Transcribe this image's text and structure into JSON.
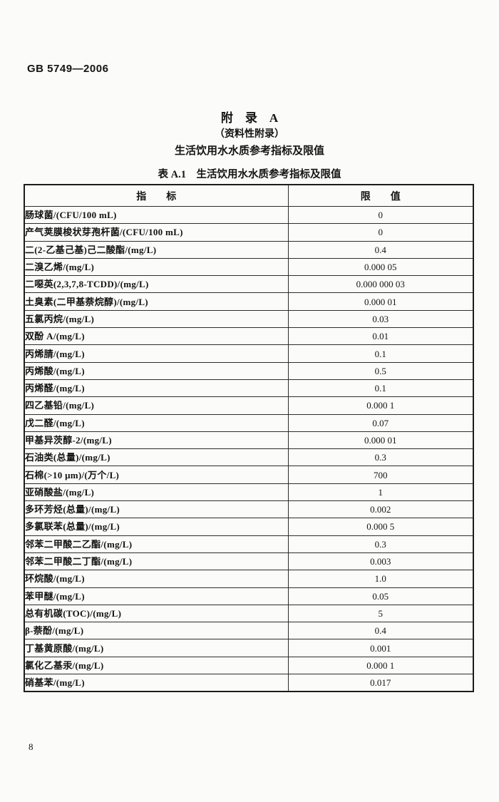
{
  "page": {
    "header": "GB 5749—2006",
    "page_number": "8"
  },
  "appendix": {
    "title": "附　录　A",
    "subtitle": "（资料性附录）",
    "heading": "生活饮用水水质参考指标及限值"
  },
  "table": {
    "caption": "表 A.1　生活饮用水水质参考指标及限值",
    "columns": [
      "指　　标",
      "限　　值"
    ],
    "rows": [
      {
        "indicator": "肠球菌/(CFU/100 mL)",
        "limit": "0"
      },
      {
        "indicator": "产气荚膜梭状芽孢杆菌/(CFU/100 mL)",
        "limit": "0"
      },
      {
        "indicator": "二(2-乙基己基)己二酸酯/(mg/L)",
        "limit": "0.4"
      },
      {
        "indicator": "二溴乙烯/(mg/L)",
        "limit": "0.000 05"
      },
      {
        "indicator": "二噁英(2,3,7,8-TCDD)/(mg/L)",
        "limit": "0.000 000 03"
      },
      {
        "indicator": "土臭素(二甲基萘烷醇)/(mg/L)",
        "limit": "0.000 01"
      },
      {
        "indicator": "五氯丙烷/(mg/L)",
        "limit": "0.03"
      },
      {
        "indicator": "双酚 A/(mg/L)",
        "limit": "0.01"
      },
      {
        "indicator": "丙烯腈/(mg/L)",
        "limit": "0.1"
      },
      {
        "indicator": "丙烯酸/(mg/L)",
        "limit": "0.5"
      },
      {
        "indicator": "丙烯醛/(mg/L)",
        "limit": "0.1"
      },
      {
        "indicator": "四乙基铅/(mg/L)",
        "limit": "0.000 1"
      },
      {
        "indicator": "戊二醛/(mg/L)",
        "limit": "0.07"
      },
      {
        "indicator": "甲基异茨醇-2/(mg/L)",
        "limit": "0.000 01"
      },
      {
        "indicator": "石油类(总量)/(mg/L)",
        "limit": "0.3"
      },
      {
        "indicator": "石棉(>10 μm)/(万个/L)",
        "limit": "700"
      },
      {
        "indicator": "亚硝酸盐/(mg/L)",
        "limit": "1"
      },
      {
        "indicator": "多环芳烃(总量)/(mg/L)",
        "limit": "0.002"
      },
      {
        "indicator": "多氯联苯(总量)/(mg/L)",
        "limit": "0.000 5"
      },
      {
        "indicator": "邻苯二甲酸二乙酯/(mg/L)",
        "limit": "0.3"
      },
      {
        "indicator": "邻苯二甲酸二丁酯/(mg/L)",
        "limit": "0.003"
      },
      {
        "indicator": "环烷酸/(mg/L)",
        "limit": "1.0"
      },
      {
        "indicator": "苯甲醚/(mg/L)",
        "limit": "0.05"
      },
      {
        "indicator": "总有机碳(TOC)/(mg/L)",
        "limit": "5"
      },
      {
        "indicator": "β-萘酚/(mg/L)",
        "limit": "0.4"
      },
      {
        "indicator": "丁基黄原酸/(mg/L)",
        "limit": "0.001"
      },
      {
        "indicator": "氯化乙基汞/(mg/L)",
        "limit": "0.000 1"
      },
      {
        "indicator": "硝基苯/(mg/L)",
        "limit": "0.017"
      }
    ]
  }
}
